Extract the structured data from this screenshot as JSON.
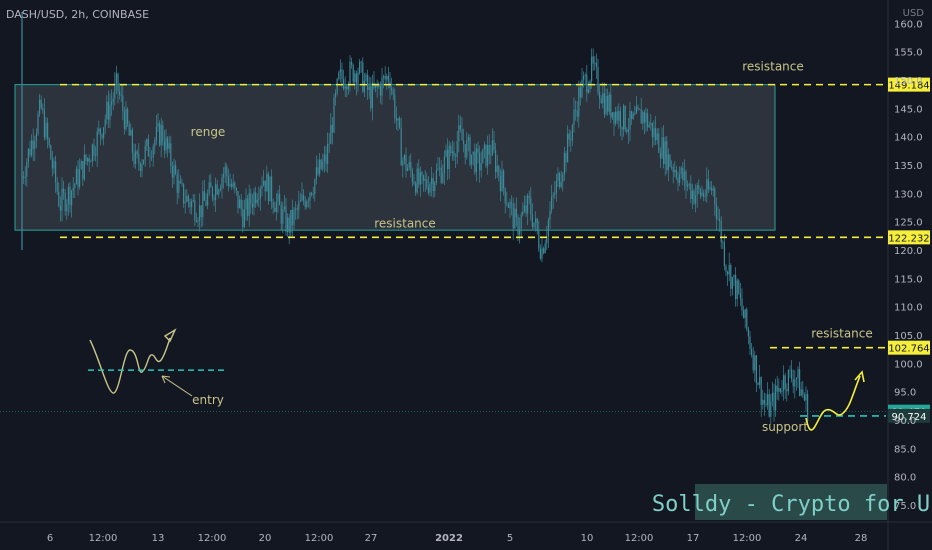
{
  "header": {
    "symbol": "DASH/USD, 2h, COINBASE",
    "currency": "USD"
  },
  "watermark": "Solldy - Crypto for U",
  "colors": {
    "bg": "#131722",
    "candle": "#3d8a99",
    "level": "#f5ee3a",
    "range_fill": "#5d6670",
    "range_border": "#26a69a",
    "note": "#c9c48a",
    "support_dash": "#26c6b8",
    "watermark_bg": "#2a4a4a",
    "watermark_fg": "#7fd0c8",
    "axis_text": "#b2b5be"
  },
  "chart_data": {
    "type": "candlestick",
    "y_axis": {
      "min": 72,
      "max": 162,
      "ticks": [
        75,
        80,
        85,
        90,
        95,
        100,
        105,
        110,
        115,
        120,
        125,
        130,
        135,
        140,
        145,
        150,
        155,
        160
      ]
    },
    "x_ticks": [
      "6",
      "12:00",
      "13",
      "12:00",
      "20",
      "12:00",
      "27",
      "2022",
      "5",
      "10",
      "12:00",
      "17",
      "12:00",
      "24",
      "28"
    ],
    "price_path": [
      [
        0,
        133
      ],
      [
        3,
        145
      ],
      [
        6,
        128
      ],
      [
        8,
        131
      ],
      [
        12,
        140
      ],
      [
        15,
        149
      ],
      [
        18,
        135
      ],
      [
        22,
        141
      ],
      [
        25,
        130
      ],
      [
        28,
        127
      ],
      [
        32,
        134
      ],
      [
        35,
        126
      ],
      [
        38,
        133
      ],
      [
        42,
        124
      ],
      [
        45,
        130
      ],
      [
        48,
        136
      ],
      [
        50,
        150
      ],
      [
        53,
        152
      ],
      [
        55,
        147
      ],
      [
        58,
        151
      ],
      [
        60,
        136
      ],
      [
        63,
        131
      ],
      [
        66,
        134
      ],
      [
        69,
        140
      ],
      [
        72,
        135
      ],
      [
        74,
        138
      ],
      [
        76,
        131
      ],
      [
        78,
        124
      ],
      [
        80,
        128
      ],
      [
        82,
        120
      ],
      [
        84,
        130
      ],
      [
        86,
        138
      ],
      [
        88,
        148
      ],
      [
        90,
        152
      ],
      [
        92,
        146
      ],
      [
        94,
        144
      ],
      [
        96,
        142
      ],
      [
        98,
        144
      ],
      [
        100,
        140
      ],
      [
        102,
        136
      ],
      [
        104,
        133
      ],
      [
        106,
        130
      ],
      [
        108,
        130
      ],
      [
        109,
        131
      ],
      [
        111,
        118
      ],
      [
        113,
        112
      ],
      [
        115,
        103
      ],
      [
        117,
        93
      ],
      [
        118,
        92
      ],
      [
        120,
        97
      ],
      [
        122,
        98
      ],
      [
        124,
        92
      ]
    ],
    "levels": [
      {
        "value": 149.184,
        "label": "149.184",
        "annotation": "resistance"
      },
      {
        "value": 122.232,
        "label": "122.232",
        "annotation": "resistance"
      },
      {
        "value": 102.764,
        "label": "102.764",
        "annotation": "resistance"
      },
      {
        "value": 91.47,
        "label": "91.470",
        "annotation": ""
      },
      {
        "value": 90.724,
        "label": "90.724",
        "annotation": "support"
      }
    ],
    "range_box": {
      "top": 149.184,
      "bottom": 123.5,
      "label": "renge"
    },
    "entry_label": "entry"
  }
}
